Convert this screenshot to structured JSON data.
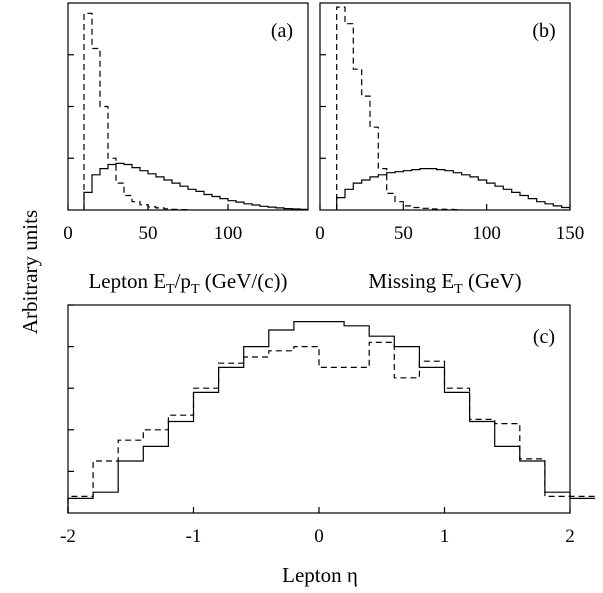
{
  "figure": {
    "ylabel": "Arbitrary units"
  },
  "chart_data": [
    {
      "panel": "(a)",
      "type": "histogram-step",
      "xlabel": {
        "main": "Lepton E",
        "sub1": "T",
        "mid": "/p",
        "sub2": "T",
        "tail": " (GeV/(c))"
      },
      "xlim": [
        0,
        150
      ],
      "ylim": [
        0,
        1.0
      ],
      "xticks": [
        0,
        50,
        100
      ],
      "yticks": [
        0.25,
        0.5,
        0.75
      ],
      "bin_width": 5,
      "x_start": 10,
      "series": [
        {
          "style": "solid",
          "values": [
            0.085,
            0.17,
            0.2,
            0.22,
            0.225,
            0.22,
            0.205,
            0.19,
            0.175,
            0.16,
            0.145,
            0.13,
            0.115,
            0.1,
            0.09,
            0.075,
            0.065,
            0.055,
            0.045,
            0.038,
            0.03,
            0.024,
            0.018,
            0.014,
            0.01,
            0.007,
            0.005,
            0.003
          ]
        },
        {
          "style": "dashed",
          "values": [
            0.95,
            0.78,
            0.5,
            0.25,
            0.13,
            0.07,
            0.04,
            0.025,
            0.015,
            0.01,
            0.006,
            0.003,
            0.002
          ]
        }
      ]
    },
    {
      "panel": "(b)",
      "type": "histogram-step",
      "xlabel": {
        "main": "Missing E",
        "sub1": "T",
        "tail": " (GeV)"
      },
      "xlim": [
        0,
        150
      ],
      "ylim": [
        0,
        1.0
      ],
      "xticks": [
        0,
        50,
        100,
        150
      ],
      "yticks": [
        0.25,
        0.5,
        0.75
      ],
      "bin_width": 5,
      "x_start": 10,
      "series": [
        {
          "style": "solid",
          "values": [
            0.06,
            0.1,
            0.13,
            0.145,
            0.16,
            0.17,
            0.18,
            0.185,
            0.19,
            0.195,
            0.2,
            0.2,
            0.195,
            0.19,
            0.18,
            0.17,
            0.16,
            0.145,
            0.13,
            0.115,
            0.1,
            0.085,
            0.07,
            0.055,
            0.04,
            0.03,
            0.02,
            0.012
          ]
        },
        {
          "style": "dashed",
          "values": [
            0.98,
            0.9,
            0.68,
            0.55,
            0.4,
            0.2,
            0.08,
            0.04,
            0.02,
            0.012,
            0.008,
            0.005,
            0.004,
            0.003,
            0.002
          ]
        }
      ]
    },
    {
      "panel": "(c)",
      "type": "histogram-step",
      "xlabel": {
        "main": "Lepton η"
      },
      "xlim": [
        -2,
        2
      ],
      "ylim": [
        0,
        1.0
      ],
      "xticks": [
        -2,
        -1,
        0,
        1,
        2
      ],
      "xtick_labels": [
        "-2",
        "-1",
        "0",
        "1",
        "2"
      ],
      "yticks": [
        0.2,
        0.4,
        0.6,
        0.8,
        1.0
      ],
      "bin_width": 0.2,
      "x_start": -2.0,
      "series": [
        {
          "style": "solid",
          "values": [
            0.07,
            0.1,
            0.25,
            0.32,
            0.44,
            0.58,
            0.7,
            0.8,
            0.88,
            0.92,
            0.92,
            0.9,
            0.85,
            0.8,
            0.7,
            0.58,
            0.44,
            0.32,
            0.25,
            0.1,
            0.07
          ]
        },
        {
          "style": "dashed",
          "values": [
            0.08,
            0.25,
            0.35,
            0.4,
            0.47,
            0.6,
            0.72,
            0.75,
            0.78,
            0.8,
            0.7,
            0.7,
            0.82,
            0.65,
            0.73,
            0.6,
            0.45,
            0.43,
            0.26,
            0.08,
            0.08
          ]
        }
      ]
    }
  ]
}
